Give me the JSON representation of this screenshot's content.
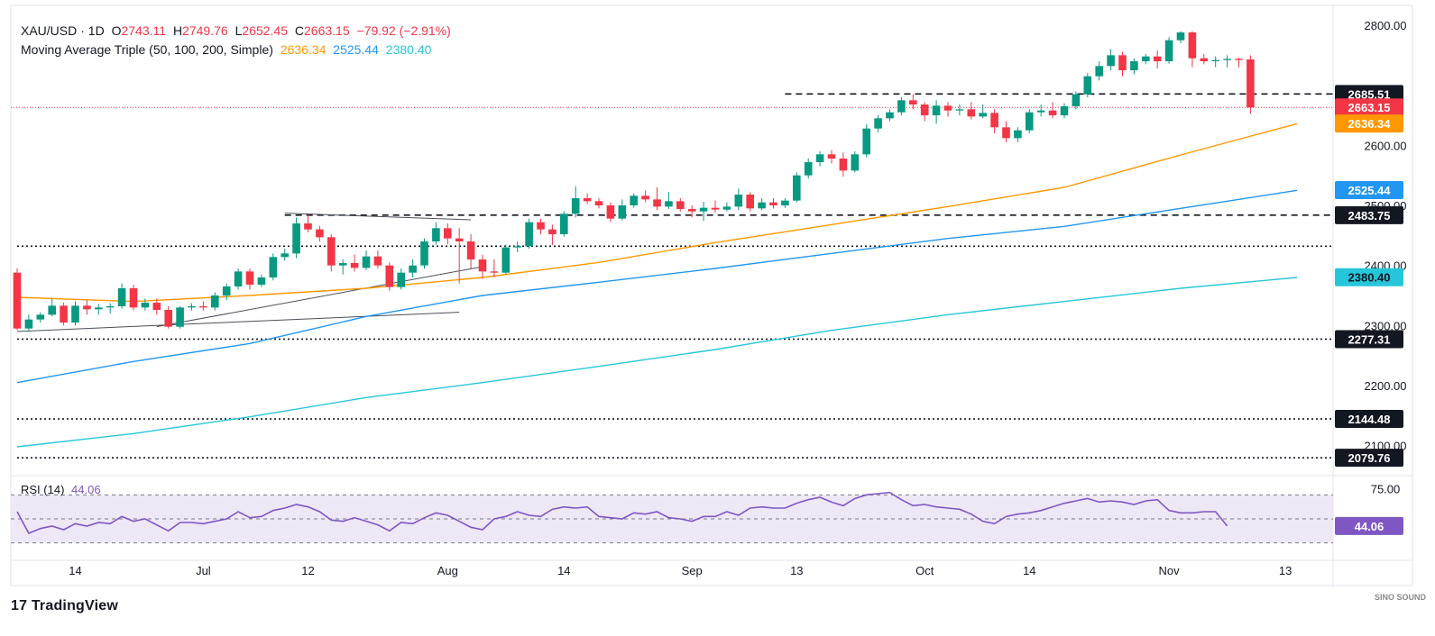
{
  "header": {
    "symbol": "XAU/USD",
    "interval": "1D",
    "open_label": "O",
    "open": "2743.11",
    "high_label": "H",
    "high": "2749.76",
    "low_label": "L",
    "low": "2652.45",
    "close_label": "C",
    "close": "2663.15",
    "change": "−79.92 (−2.91%)",
    "ma_label": "Moving Average Triple (50, 100, 200, Simple)",
    "ma50": "2636.34",
    "ma100": "2525.44",
    "ma200": "2380.40"
  },
  "rsi_label": "RSI (14)",
  "rsi_value": "44.06",
  "branding": {
    "logo_text": "TradingView",
    "watermark": "SINO SOUND"
  },
  "colors": {
    "up": "#089981",
    "down": "#f23645",
    "ma50": "#ff9800",
    "ma100": "#2196f3",
    "ma200": "#26c6da",
    "rsi": "#7e57c2",
    "rsi_band": "#ede7f6"
  },
  "chart_data": {
    "type": "candlestick",
    "price_ylim": [
      2050,
      2830
    ],
    "price_ticks": [
      "2800.00",
      "2600.00",
      "2500.00",
      "2400.00",
      "2300.00",
      "2200.00",
      "2100.00"
    ],
    "x_ticks": [
      "14",
      "Jul",
      "12",
      "Aug",
      "14",
      "Sep",
      "13",
      "Oct",
      "14",
      "Nov",
      "13"
    ],
    "price_labels": [
      {
        "text": "2685.51",
        "value": 2685.51,
        "style": "dark"
      },
      {
        "text": "2663.15",
        "value": 2663.15,
        "style": "down"
      },
      {
        "text": "2636.34",
        "value": 2636.34,
        "style": "ma50"
      },
      {
        "text": "2525.44",
        "value": 2525.44,
        "style": "ma100"
      },
      {
        "text": "2483.75",
        "value": 2483.75,
        "style": "dark"
      },
      {
        "text": "2380.40",
        "value": 2380.4,
        "style": "ma200"
      },
      {
        "text": "2277.31",
        "value": 2277.31,
        "style": "dark"
      },
      {
        "text": "2144.48",
        "value": 2144.48,
        "style": "dark"
      },
      {
        "text": "2079.76",
        "value": 2079.76,
        "style": "dark"
      }
    ],
    "levels": [
      {
        "value": 2685.51,
        "style": "dashed",
        "from_bar": 66
      },
      {
        "value": 2483.75,
        "style": "dashed",
        "from_bar": 23
      },
      {
        "value": 2432,
        "style": "dotted",
        "from_bar": 0
      },
      {
        "value": 2277.31,
        "style": "dotted",
        "from_bar": 0
      },
      {
        "value": 2144.48,
        "style": "dotted",
        "from_bar": 0
      },
      {
        "value": 2079.76,
        "style": "dotted",
        "from_bar": 0
      }
    ],
    "trendlines": [
      {
        "from": [
          0,
          2290
        ],
        "to": [
          38,
          2322
        ]
      },
      {
        "from": [
          12,
          2298
        ],
        "to": [
          40,
          2398
        ]
      },
      {
        "from": [
          23,
          2487
        ],
        "to": [
          39,
          2476
        ]
      }
    ],
    "candles": [
      [
        2388,
        2395,
        2292,
        2295
      ],
      [
        2295,
        2318,
        2290,
        2310
      ],
      [
        2310,
        2322,
        2305,
        2318
      ],
      [
        2318,
        2345,
        2315,
        2333
      ],
      [
        2333,
        2338,
        2300,
        2305
      ],
      [
        2305,
        2340,
        2300,
        2333
      ],
      [
        2333,
        2342,
        2318,
        2327
      ],
      [
        2327,
        2336,
        2318,
        2330
      ],
      [
        2330,
        2337,
        2320,
        2332
      ],
      [
        2332,
        2370,
        2328,
        2362
      ],
      [
        2362,
        2368,
        2325,
        2330
      ],
      [
        2330,
        2345,
        2325,
        2338
      ],
      [
        2338,
        2345,
        2318,
        2326
      ],
      [
        2326,
        2332,
        2295,
        2298
      ],
      [
        2298,
        2332,
        2295,
        2330
      ],
      [
        2330,
        2337,
        2325,
        2332
      ],
      [
        2332,
        2340,
        2325,
        2330
      ],
      [
        2330,
        2355,
        2325,
        2350
      ],
      [
        2350,
        2370,
        2342,
        2365
      ],
      [
        2365,
        2395,
        2360,
        2390
      ],
      [
        2390,
        2395,
        2360,
        2368
      ],
      [
        2368,
        2385,
        2364,
        2380
      ],
      [
        2380,
        2420,
        2375,
        2414
      ],
      [
        2414,
        2428,
        2408,
        2420
      ],
      [
        2420,
        2480,
        2412,
        2470
      ],
      [
        2470,
        2485,
        2455,
        2460
      ],
      [
        2460,
        2466,
        2440,
        2447
      ],
      [
        2447,
        2452,
        2390,
        2400
      ],
      [
        2400,
        2410,
        2385,
        2404
      ],
      [
        2404,
        2418,
        2390,
        2396
      ],
      [
        2396,
        2425,
        2392,
        2415
      ],
      [
        2415,
        2425,
        2395,
        2400
      ],
      [
        2400,
        2405,
        2358,
        2364
      ],
      [
        2364,
        2395,
        2360,
        2388
      ],
      [
        2388,
        2410,
        2380,
        2400
      ],
      [
        2400,
        2445,
        2395,
        2440
      ],
      [
        2440,
        2472,
        2435,
        2462
      ],
      [
        2462,
        2470,
        2435,
        2445
      ],
      [
        2445,
        2462,
        2370,
        2440
      ],
      [
        2440,
        2452,
        2395,
        2410
      ],
      [
        2410,
        2418,
        2378,
        2390
      ],
      [
        2390,
        2410,
        2380,
        2388
      ],
      [
        2388,
        2435,
        2385,
        2430
      ],
      [
        2430,
        2440,
        2422,
        2432
      ],
      [
        2432,
        2478,
        2428,
        2472
      ],
      [
        2472,
        2478,
        2452,
        2460
      ],
      [
        2460,
        2468,
        2434,
        2452
      ],
      [
        2452,
        2490,
        2448,
        2486
      ],
      [
        2486,
        2532,
        2480,
        2512
      ],
      [
        2512,
        2520,
        2502,
        2507
      ],
      [
        2507,
        2512,
        2495,
        2500
      ],
      [
        2500,
        2505,
        2472,
        2478
      ],
      [
        2478,
        2510,
        2475,
        2500
      ],
      [
        2500,
        2520,
        2496,
        2516
      ],
      [
        2516,
        2525,
        2505,
        2510
      ],
      [
        2510,
        2530,
        2492,
        2498
      ],
      [
        2498,
        2522,
        2494,
        2507
      ],
      [
        2507,
        2512,
        2490,
        2494
      ],
      [
        2494,
        2500,
        2480,
        2490
      ],
      [
        2490,
        2506,
        2474,
        2496
      ],
      [
        2496,
        2508,
        2488,
        2493
      ],
      [
        2493,
        2505,
        2490,
        2498
      ],
      [
        2498,
        2528,
        2492,
        2518
      ],
      [
        2518,
        2522,
        2490,
        2495
      ],
      [
        2495,
        2512,
        2492,
        2505
      ],
      [
        2505,
        2512,
        2495,
        2500
      ],
      [
        2500,
        2512,
        2496,
        2508
      ],
      [
        2508,
        2555,
        2505,
        2550
      ],
      [
        2550,
        2578,
        2545,
        2572
      ],
      [
        2572,
        2590,
        2565,
        2585
      ],
      [
        2585,
        2592,
        2570,
        2578
      ],
      [
        2578,
        2588,
        2548,
        2558
      ],
      [
        2558,
        2590,
        2555,
        2585
      ],
      [
        2585,
        2635,
        2580,
        2628
      ],
      [
        2628,
        2650,
        2622,
        2645
      ],
      [
        2645,
        2660,
        2640,
        2655
      ],
      [
        2655,
        2680,
        2650,
        2675
      ],
      [
        2675,
        2685,
        2660,
        2668
      ],
      [
        2668,
        2672,
        2640,
        2650
      ],
      [
        2650,
        2675,
        2636,
        2666
      ],
      [
        2666,
        2672,
        2648,
        2658
      ],
      [
        2658,
        2668,
        2650,
        2660
      ],
      [
        2660,
        2672,
        2643,
        2648
      ],
      [
        2648,
        2668,
        2645,
        2654
      ],
      [
        2654,
        2660,
        2620,
        2630
      ],
      [
        2630,
        2640,
        2605,
        2612
      ],
      [
        2612,
        2630,
        2605,
        2625
      ],
      [
        2625,
        2660,
        2620,
        2655
      ],
      [
        2655,
        2668,
        2648,
        2658
      ],
      [
        2658,
        2672,
        2645,
        2650
      ],
      [
        2650,
        2670,
        2645,
        2665
      ],
      [
        2665,
        2690,
        2660,
        2685
      ],
      [
        2685,
        2720,
        2680,
        2715
      ],
      [
        2715,
        2740,
        2708,
        2732
      ],
      [
        2732,
        2760,
        2725,
        2750
      ],
      [
        2750,
        2756,
        2715,
        2725
      ],
      [
        2725,
        2745,
        2718,
        2740
      ],
      [
        2740,
        2752,
        2735,
        2748
      ],
      [
        2748,
        2758,
        2728,
        2740
      ],
      [
        2740,
        2780,
        2736,
        2775
      ],
      [
        2775,
        2790,
        2770,
        2788
      ],
      [
        2788,
        2790,
        2730,
        2745
      ],
      [
        2745,
        2752,
        2735,
        2740
      ],
      [
        2740,
        2748,
        2730,
        2742
      ],
      [
        2742,
        2750,
        2730,
        2744
      ],
      [
        2744,
        2746,
        2730,
        2742
      ],
      [
        2743.11,
        2749.76,
        2652.45,
        2663.15
      ]
    ],
    "series": [
      {
        "name": "MA50",
        "points": [
          [
            0,
            2347
          ],
          [
            10,
            2340
          ],
          [
            20,
            2350
          ],
          [
            30,
            2362
          ],
          [
            40,
            2380
          ],
          [
            50,
            2405
          ],
          [
            60,
            2438
          ],
          [
            70,
            2468
          ],
          [
            80,
            2498
          ],
          [
            90,
            2530
          ],
          [
            100,
            2584
          ],
          [
            110,
            2636
          ]
        ]
      },
      {
        "name": "MA100",
        "points": [
          [
            0,
            2205
          ],
          [
            10,
            2240
          ],
          [
            20,
            2270
          ],
          [
            30,
            2315
          ],
          [
            40,
            2350
          ],
          [
            50,
            2372
          ],
          [
            60,
            2395
          ],
          [
            70,
            2420
          ],
          [
            80,
            2445
          ],
          [
            90,
            2465
          ],
          [
            100,
            2495
          ],
          [
            110,
            2525
          ]
        ]
      },
      {
        "name": "MA200",
        "points": [
          [
            0,
            2098
          ],
          [
            10,
            2120
          ],
          [
            20,
            2148
          ],
          [
            30,
            2180
          ],
          [
            40,
            2205
          ],
          [
            50,
            2232
          ],
          [
            60,
            2260
          ],
          [
            70,
            2292
          ],
          [
            80,
            2318
          ],
          [
            90,
            2340
          ],
          [
            100,
            2362
          ],
          [
            110,
            2380
          ]
        ]
      }
    ],
    "rsi": {
      "ylim": [
        20,
        80
      ],
      "bands": [
        70,
        30
      ],
      "tick": "75.00",
      "values": [
        56,
        38,
        42,
        44,
        41,
        46,
        44,
        47,
        46,
        52,
        48,
        50,
        45,
        40,
        47,
        47,
        46,
        48,
        50,
        56,
        51,
        52,
        57,
        59,
        62,
        60,
        56,
        49,
        48,
        51,
        48,
        45,
        40,
        47,
        46,
        51,
        55,
        53,
        48,
        43,
        41,
        50,
        52,
        56,
        53,
        52,
        58,
        60,
        59,
        60,
        52,
        51,
        50,
        55,
        54,
        56,
        51,
        50,
        48,
        52,
        52,
        56,
        53,
        59,
        60,
        59,
        59,
        63,
        66,
        68,
        64,
        61,
        67,
        70,
        71,
        72,
        66,
        61,
        62,
        60,
        59,
        58,
        54,
        48,
        46,
        52,
        54,
        55,
        57,
        60,
        63,
        65,
        67,
        64,
        65,
        64,
        62,
        65,
        66,
        57,
        55,
        55,
        56,
        56,
        44.06
      ]
    }
  }
}
